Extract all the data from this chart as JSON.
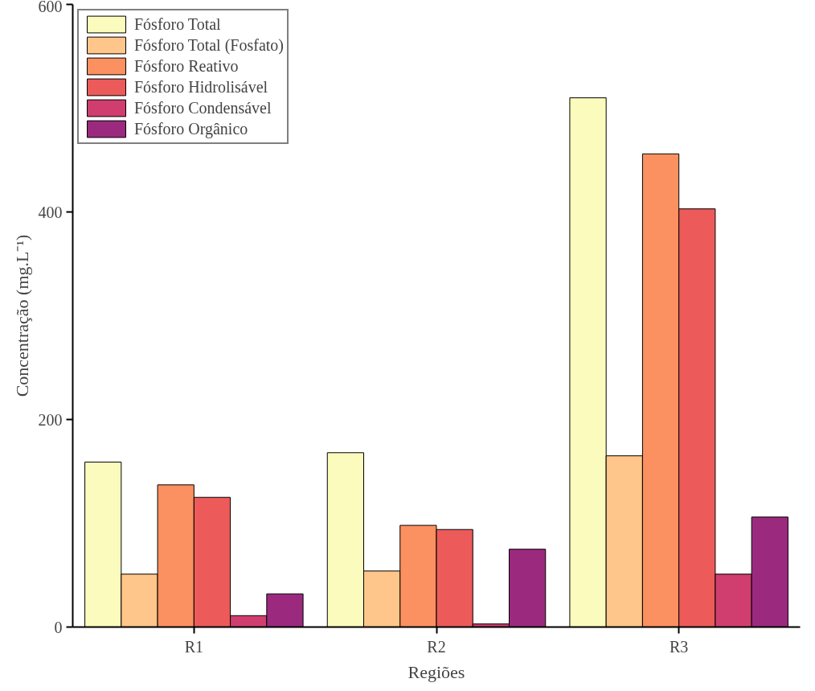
{
  "chart_data": {
    "type": "bar",
    "xlabel": "Regiões",
    "ylabel": "Concentração (mg.L⁻¹)",
    "categories": [
      "R1",
      "R2",
      "R3"
    ],
    "series": [
      {
        "name": "Fósforo Total",
        "color": "#fbfbbd",
        "values": [
          159,
          168,
          510
        ]
      },
      {
        "name": "Fósforo Total (Fosfato)",
        "color": "#fec68a",
        "values": [
          51,
          54,
          165
        ]
      },
      {
        "name": "Fósforo Reativo",
        "color": "#fb9060",
        "values": [
          137,
          98,
          456
        ]
      },
      {
        "name": "Fósforo Hidrolisável",
        "color": "#ec5a5a",
        "values": [
          125,
          94,
          403
        ]
      },
      {
        "name": "Fósforo Condensável",
        "color": "#cf3e6e",
        "values": [
          11,
          3,
          51
        ]
      },
      {
        "name": "Fósforo Orgânico",
        "color": "#9b2a7f",
        "values": [
          32,
          75,
          106
        ]
      }
    ],
    "ylim": [
      0,
      600
    ],
    "yticks": [
      0,
      200,
      400,
      600
    ],
    "grid": false,
    "legend": "top left"
  }
}
